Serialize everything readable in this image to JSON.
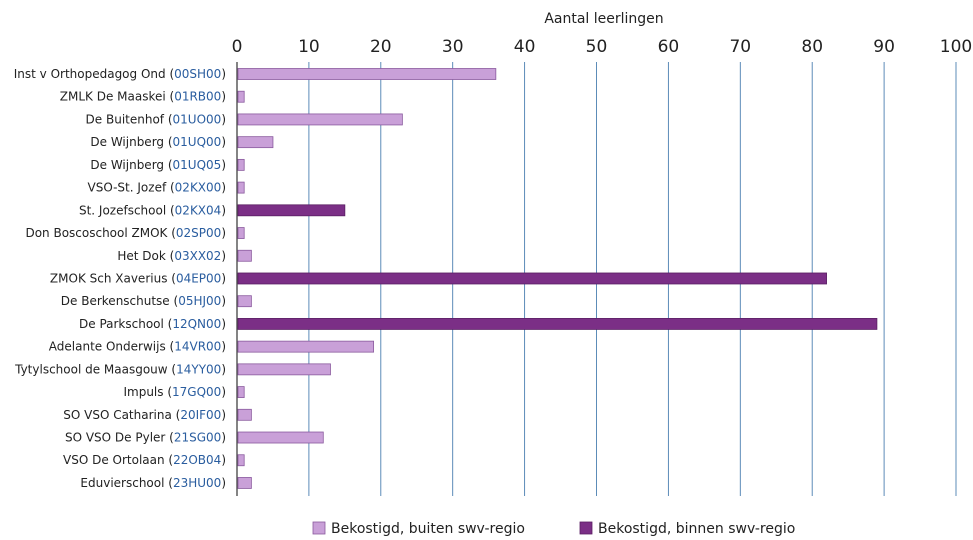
{
  "chart_data": {
    "type": "bar",
    "orientation": "horizontal",
    "xlabel": "Aantal leerlingen",
    "xlim": [
      0,
      100
    ],
    "xticks": [
      0,
      10,
      20,
      30,
      40,
      50,
      60,
      70,
      80,
      90,
      100
    ],
    "grid": true,
    "legend_position": "bottom",
    "categories": [
      {
        "name": "Inst v Orthopedagog Ond",
        "code": "00SH00"
      },
      {
        "name": "ZMLK De Maaskei",
        "code": "01RB00"
      },
      {
        "name": "De Buitenhof",
        "code": "01UO00"
      },
      {
        "name": "De Wijnberg",
        "code": "01UQ00"
      },
      {
        "name": "De Wijnberg",
        "code": "01UQ05"
      },
      {
        "name": "VSO-St. Jozef",
        "code": "02KX00"
      },
      {
        "name": "St. Jozefschool",
        "code": "02KX04"
      },
      {
        "name": "Don Boscoschool ZMOK",
        "code": "02SP00"
      },
      {
        "name": "Het Dok",
        "code": "03XX02"
      },
      {
        "name": "ZMOK Sch Xaverius",
        "code": "04EP00"
      },
      {
        "name": "De Berkenschutse",
        "code": "05HJ00"
      },
      {
        "name": "De Parkschool",
        "code": "12QN00"
      },
      {
        "name": "Adelante Onderwijs",
        "code": "14VR00"
      },
      {
        "name": "Tytylschool de Maasgouw",
        "code": "14YY00"
      },
      {
        "name": "Impuls",
        "code": "17GQ00"
      },
      {
        "name": "SO VSO Catharina",
        "code": "20IF00"
      },
      {
        "name": "SO VSO De Pyler",
        "code": "21SG00"
      },
      {
        "name": "VSO De Ortolaan",
        "code": "22OB04"
      },
      {
        "name": "Eduvierschool",
        "code": "23HU00"
      }
    ],
    "values": [
      36,
      1,
      23,
      5,
      1,
      1,
      15,
      1,
      2,
      82,
      2,
      89,
      19,
      13,
      1,
      2,
      12,
      1,
      2
    ],
    "series_index": [
      0,
      0,
      0,
      0,
      0,
      0,
      1,
      0,
      0,
      1,
      0,
      1,
      0,
      0,
      0,
      0,
      0,
      0,
      0
    ],
    "series": [
      {
        "name": "Bekostigd, buiten swv-regio",
        "color": "#c9a0d8",
        "stroke": "#8a5a9e"
      },
      {
        "name": "Bekostigd, binnen swv-regio",
        "color": "#7b2f86",
        "stroke": "#5a1f63"
      }
    ],
    "grid_color": "#4a7fb0",
    "code_color": "#2a5d9f"
  }
}
